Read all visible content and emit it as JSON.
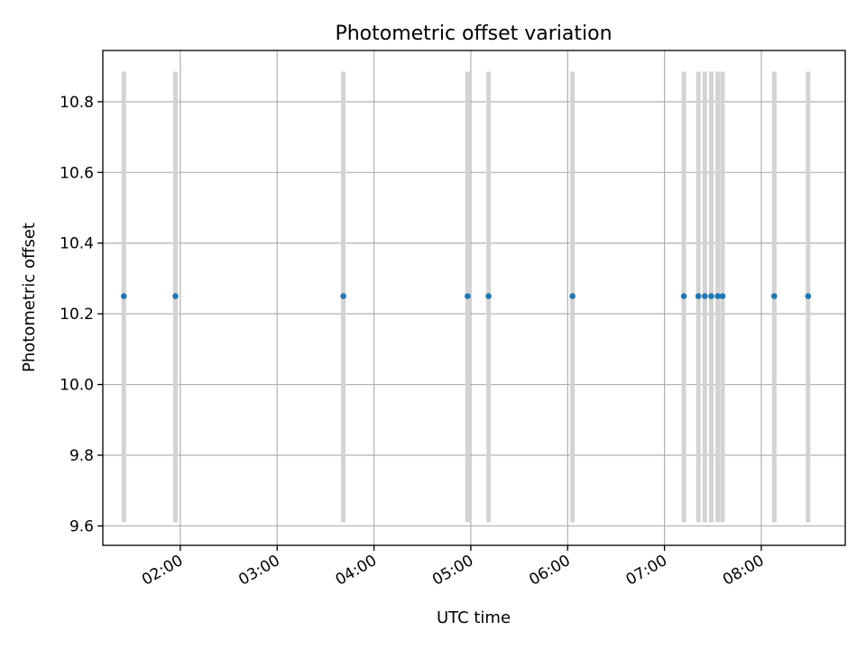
{
  "chart_data": {
    "type": "scatter",
    "title": "Photometric offset variation",
    "xlabel": "UTC time",
    "ylabel": "Photometric offset",
    "xlim": [
      "01:12",
      "08:52"
    ],
    "ylim": [
      9.545,
      10.945
    ],
    "x_ticks": [
      "02:00",
      "03:00",
      "04:00",
      "05:00",
      "06:00",
      "07:00",
      "08:00"
    ],
    "y_ticks": [
      "9.6",
      "9.8",
      "10.0",
      "10.2",
      "10.4",
      "10.6",
      "10.8"
    ],
    "grid": true,
    "marker_color": "#1f77b4",
    "errorbar_color": "#d3d3d3",
    "points": [
      {
        "time": "01:25",
        "offset": 10.25,
        "err_low": 9.61,
        "err_high": 10.885
      },
      {
        "time": "01:57",
        "offset": 10.25,
        "err_low": 9.61,
        "err_high": 10.885
      },
      {
        "time": "03:41",
        "offset": 10.25,
        "err_low": 9.61,
        "err_high": 10.885
      },
      {
        "time": "04:58",
        "offset": 10.25,
        "err_low": 9.61,
        "err_high": 10.885
      },
      {
        "time": "05:11",
        "offset": 10.25,
        "err_low": 9.61,
        "err_high": 10.885
      },
      {
        "time": "06:03",
        "offset": 10.25,
        "err_low": 9.61,
        "err_high": 10.885
      },
      {
        "time": "07:12",
        "offset": 10.25,
        "err_low": 9.61,
        "err_high": 10.885
      },
      {
        "time": "07:21",
        "offset": 10.25,
        "err_low": 9.61,
        "err_high": 10.885
      },
      {
        "time": "07:25",
        "offset": 10.25,
        "err_low": 9.61,
        "err_high": 10.885
      },
      {
        "time": "07:29",
        "offset": 10.25,
        "err_low": 9.61,
        "err_high": 10.885
      },
      {
        "time": "07:33",
        "offset": 10.25,
        "err_low": 9.61,
        "err_high": 10.885
      },
      {
        "time": "07:36",
        "offset": 10.25,
        "err_low": 9.61,
        "err_high": 10.885
      },
      {
        "time": "08:08",
        "offset": 10.25,
        "err_low": 9.61,
        "err_high": 10.885
      },
      {
        "time": "08:29",
        "offset": 10.25,
        "err_low": 9.61,
        "err_high": 10.885
      }
    ]
  }
}
